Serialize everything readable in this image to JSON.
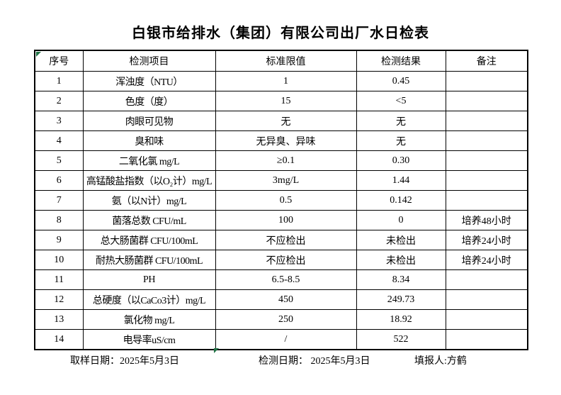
{
  "page": {
    "title": "白银市给排水（集团）有限公司出厂水日检表"
  },
  "table": {
    "headers": {
      "no": "序号",
      "item": "检测项目",
      "limit": "标准限值",
      "result": "检测结果",
      "remark": "备注"
    },
    "rows": [
      {
        "no": "1",
        "item": "浑浊度（NTU）",
        "limit": "1",
        "result": "0.45",
        "remark": ""
      },
      {
        "no": "2",
        "item": "色度（度）",
        "limit": "15",
        "result": "<5",
        "remark": ""
      },
      {
        "no": "3",
        "item": "肉眼可见物",
        "limit": "无",
        "result": "无",
        "remark": ""
      },
      {
        "no": "4",
        "item": "臭和味",
        "limit": "无异臭、异味",
        "result": "无",
        "remark": ""
      },
      {
        "no": "5",
        "item": "二氧化氯 mg/L",
        "limit": "≥0.1",
        "result": "0.30",
        "remark": ""
      },
      {
        "no": "6",
        "item": "高锰酸盐指数（以O₂计）mg/L",
        "limit": "3mg/L",
        "result": "1.44",
        "remark": ""
      },
      {
        "no": "7",
        "item": "氨（以N计）mg/L",
        "limit": "0.5",
        "result": "0.142",
        "remark": ""
      },
      {
        "no": "8",
        "item": "菌落总数 CFU/mL",
        "limit": "100",
        "result": "0",
        "remark": "培养48小时"
      },
      {
        "no": "9",
        "item": "总大肠菌群 CFU/100mL",
        "limit": "不应检出",
        "result": "未检出",
        "remark": "培养24小时"
      },
      {
        "no": "10",
        "item": "耐热大肠菌群 CFU/100mL",
        "limit": "不应检出",
        "result": "未检出",
        "remark": "培养24小时"
      },
      {
        "no": "11",
        "item": "PH",
        "limit": "6.5-8.5",
        "result": "8.34",
        "remark": ""
      },
      {
        "no": "12",
        "item": "总硬度（以CaCo3计）mg/L",
        "limit": "450",
        "result": "249.73",
        "remark": ""
      },
      {
        "no": "13",
        "item": "氯化物 mg/L",
        "limit": "250",
        "result": "18.92",
        "remark": ""
      },
      {
        "no": "14",
        "item": "电导率uS/cm",
        "limit": "/",
        "result": "522",
        "remark": ""
      }
    ]
  },
  "footer": {
    "sampling": "取样日期：2025年5月3日",
    "test": "检测日期： 2025年5月3日",
    "reporter": "填报人:方鹤"
  },
  "colors": {
    "background": "#ffffff",
    "text": "#000000",
    "table_border": "#000000",
    "marker_green": "#217346"
  },
  "icons": {
    "corner_marker": "excel-green-corner-triangle",
    "bottom_marker": "excel-green-bottom-triangle"
  }
}
